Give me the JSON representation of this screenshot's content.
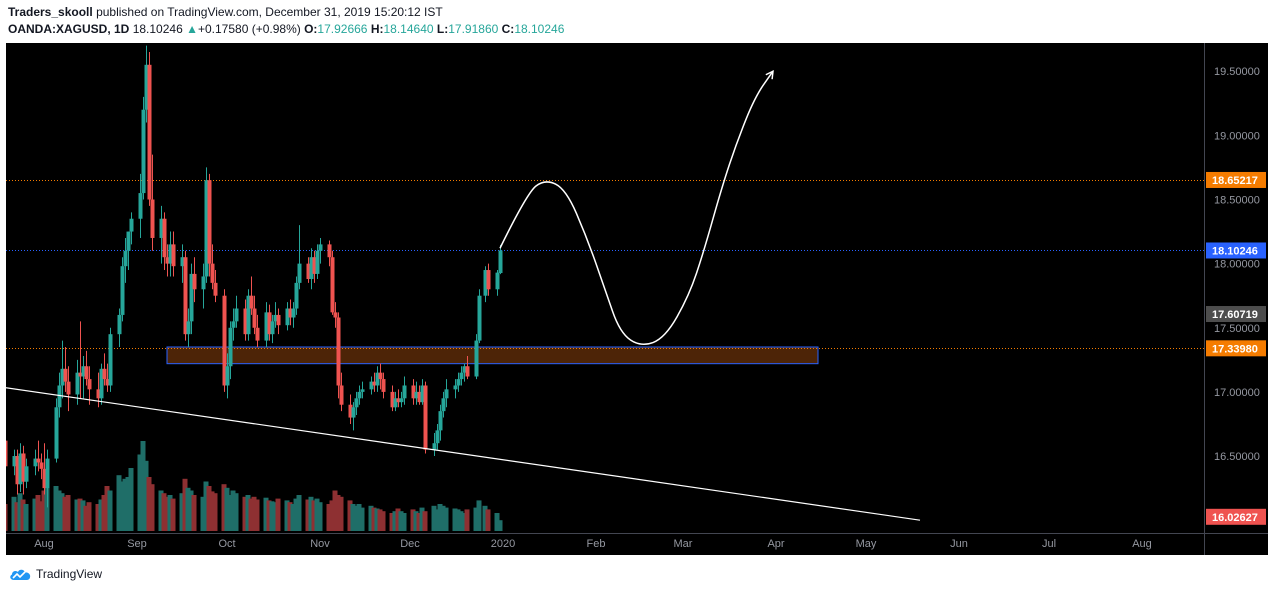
{
  "header": {
    "publisher": "Traders_skooll",
    "publish_text": "published on TradingView.com, December 31, 2019 15:20:12 IST",
    "symbol": "OANDA:XAGUSD, 1D",
    "last": "18.10246",
    "change_arrow": "▲",
    "change": "+0.17580 (+0.98%)",
    "o_label": "O:",
    "o_value": "17.92666",
    "h_label": "H:",
    "h_value": "18.14640",
    "l_label": "L:",
    "l_value": "17.91860",
    "c_label": "C:",
    "c_value": "18.10246"
  },
  "footer": {
    "brand": "TradingView",
    "icon": "tradingview-cloud-icon"
  },
  "colors": {
    "background": "#000000",
    "up": "#26a69a",
    "down": "#ef5350",
    "vol_up": "#1f6e68",
    "vol_down": "#8e3032",
    "orange_line": "#f57c00",
    "blue_line": "#2962ff",
    "zone_fill": "#5a2a08",
    "zone_border": "#2962ff",
    "axis_text": "#9598a1"
  },
  "chart_data": {
    "type": "candlestick",
    "symbol": "OANDA:XAGUSD",
    "interval": "1D",
    "x_ticks": [
      "Aug",
      "Sep",
      "Oct",
      "Nov",
      "Dec",
      "2020",
      "Feb",
      "Mar",
      "Apr",
      "May",
      "Jun",
      "Jul",
      "Aug"
    ],
    "y_ticks": [
      "19.50000",
      "19.00000",
      "18.50000",
      "18.00000",
      "17.50000",
      "17.00000",
      "16.50000"
    ],
    "ylim": [
      15.9,
      19.72
    ],
    "price_labels": [
      {
        "value": "18.65217",
        "color": "#f57c00"
      },
      {
        "value": "18.10246",
        "color": "#2962ff"
      },
      {
        "value": "17.60719",
        "color": "#4d4d4d"
      },
      {
        "value": "17.33980",
        "color": "#f57c00"
      },
      {
        "value": "16.02627",
        "color": "#ef5350"
      }
    ],
    "horizontal_lines": [
      {
        "value": 18.65217,
        "color": "#f57c00",
        "style": "dotted"
      },
      {
        "value": 18.10246,
        "color": "#2962ff",
        "style": "dotted"
      },
      {
        "value": 17.3398,
        "color": "#f57c00",
        "style": "dotted"
      }
    ],
    "zone": {
      "from": "2019-09-11",
      "to": "2020-04-15",
      "low": 17.22,
      "high": 17.35
    },
    "trendline": {
      "from": [
        "2019-07-17",
        17.04
      ],
      "to": [
        "2020-05-19",
        16.0
      ]
    },
    "projection_path": [
      [
        "2019-12-31",
        18.12
      ],
      [
        "2020-01-09",
        18.55
      ],
      [
        "2020-01-15",
        18.66
      ],
      [
        "2020-01-22",
        18.58
      ],
      [
        "2020-01-29",
        18.2
      ],
      [
        "2020-02-04",
        17.8
      ],
      [
        "2020-02-09",
        17.46
      ],
      [
        "2020-02-16",
        17.35
      ],
      [
        "2020-02-24",
        17.42
      ],
      [
        "2020-03-03",
        17.75
      ],
      [
        "2020-03-08",
        18.1
      ],
      [
        "2020-03-14",
        18.6
      ],
      [
        "2020-03-19",
        18.95
      ],
      [
        "2020-03-25",
        19.3
      ],
      [
        "2020-03-31",
        19.5
      ]
    ],
    "candles": [
      [
        "2019-07-18",
        16.55,
        16.72,
        16.45,
        16.62
      ],
      [
        "2019-07-19",
        16.62,
        16.75,
        16.4,
        16.42
      ],
      [
        "2019-07-22",
        16.42,
        16.55,
        16.35,
        16.5
      ],
      [
        "2019-07-23",
        16.5,
        16.55,
        16.2,
        16.28
      ],
      [
        "2019-07-24",
        16.28,
        16.6,
        16.22,
        16.52
      ],
      [
        "2019-07-25",
        16.52,
        16.58,
        16.2,
        16.3
      ],
      [
        "2019-07-26",
        16.3,
        16.48,
        16.25,
        16.42
      ],
      [
        "2019-07-29",
        16.42,
        16.55,
        16.35,
        16.48
      ],
      [
        "2019-07-30",
        16.48,
        16.62,
        16.38,
        16.45
      ],
      [
        "2019-07-31",
        16.45,
        16.52,
        16.32,
        16.4
      ],
      [
        "2019-08-01",
        16.4,
        16.6,
        16.2,
        16.25
      ],
      [
        "2019-08-02",
        16.25,
        16.55,
        16.1,
        16.48
      ],
      [
        "2019-08-05",
        16.48,
        16.95,
        16.45,
        16.88
      ],
      [
        "2019-08-06",
        16.88,
        17.15,
        16.8,
        17.05
      ],
      [
        "2019-08-07",
        17.05,
        17.4,
        16.95,
        17.18
      ],
      [
        "2019-08-08",
        17.18,
        17.35,
        17.0,
        17.08
      ],
      [
        "2019-08-09",
        17.08,
        17.2,
        16.85,
        16.98
      ],
      [
        "2019-08-12",
        16.98,
        17.25,
        16.9,
        17.15
      ],
      [
        "2019-08-13",
        17.15,
        17.55,
        16.95,
        17.12
      ],
      [
        "2019-08-14",
        17.12,
        17.28,
        16.95,
        17.2
      ],
      [
        "2019-08-15",
        17.2,
        17.32,
        17.05,
        17.1
      ],
      [
        "2019-08-16",
        17.1,
        17.2,
        16.9,
        17.02
      ],
      [
        "2019-08-19",
        17.02,
        17.15,
        16.88,
        16.95
      ],
      [
        "2019-08-20",
        16.95,
        17.22,
        16.9,
        17.18
      ],
      [
        "2019-08-21",
        17.18,
        17.3,
        17.05,
        17.1
      ],
      [
        "2019-08-22",
        17.1,
        17.22,
        17.0,
        17.05
      ],
      [
        "2019-08-23",
        17.05,
        17.5,
        17.0,
        17.45
      ],
      [
        "2019-08-26",
        17.45,
        17.65,
        17.35,
        17.6
      ],
      [
        "2019-08-27",
        17.6,
        18.05,
        17.55,
        17.98
      ],
      [
        "2019-08-28",
        17.98,
        18.2,
        17.85,
        18.1
      ],
      [
        "2019-08-29",
        18.1,
        18.25,
        17.95,
        18.25
      ],
      [
        "2019-08-30",
        18.25,
        18.4,
        18.15,
        18.35
      ],
      [
        "2019-09-02",
        18.35,
        18.7,
        18.2,
        18.55
      ],
      [
        "2019-09-03",
        18.55,
        19.3,
        18.5,
        19.2
      ],
      [
        "2019-09-04",
        19.2,
        19.7,
        19.1,
        19.55
      ],
      [
        "2019-09-05",
        19.55,
        19.65,
        18.45,
        18.5
      ],
      [
        "2019-09-06",
        18.5,
        18.85,
        18.1,
        18.2
      ],
      [
        "2019-09-09",
        18.2,
        18.45,
        18.0,
        18.35
      ],
      [
        "2019-09-10",
        18.35,
        18.4,
        17.95,
        18.05
      ],
      [
        "2019-09-11",
        18.05,
        18.15,
        17.9,
        18.0
      ],
      [
        "2019-09-12",
        18.0,
        18.25,
        17.9,
        18.15
      ],
      [
        "2019-09-13",
        18.15,
        18.25,
        17.9,
        17.98
      ],
      [
        "2019-09-16",
        17.98,
        18.15,
        17.85,
        18.05
      ],
      [
        "2019-09-17",
        18.05,
        18.1,
        17.4,
        17.45
      ],
      [
        "2019-09-18",
        17.45,
        17.65,
        17.35,
        17.55
      ],
      [
        "2019-09-19",
        17.55,
        18.0,
        17.45,
        17.92
      ],
      [
        "2019-09-20",
        17.92,
        18.05,
        17.7,
        17.8
      ],
      [
        "2019-09-23",
        17.8,
        18.0,
        17.65,
        17.9
      ],
      [
        "2019-09-24",
        17.9,
        18.75,
        17.85,
        18.65
      ],
      [
        "2019-09-25",
        18.65,
        18.7,
        17.9,
        18.0
      ],
      [
        "2019-09-26",
        18.0,
        18.15,
        17.8,
        17.85
      ],
      [
        "2019-09-27",
        17.85,
        17.95,
        17.7,
        17.75
      ],
      [
        "2019-09-30",
        17.75,
        17.8,
        17.0,
        17.05
      ],
      [
        "2019-10-01",
        17.05,
        17.3,
        16.95,
        17.2
      ],
      [
        "2019-10-02",
        17.2,
        17.55,
        17.1,
        17.5
      ],
      [
        "2019-10-03",
        17.5,
        17.65,
        17.4,
        17.55
      ],
      [
        "2019-10-04",
        17.55,
        17.75,
        17.5,
        17.65
      ],
      [
        "2019-10-07",
        17.65,
        17.72,
        17.4,
        17.45
      ],
      [
        "2019-10-08",
        17.45,
        17.8,
        17.4,
        17.75
      ],
      [
        "2019-10-09",
        17.75,
        17.9,
        17.6,
        17.65
      ],
      [
        "2019-10-10",
        17.65,
        17.75,
        17.45,
        17.5
      ],
      [
        "2019-10-11",
        17.5,
        17.6,
        17.35,
        17.4
      ],
      [
        "2019-10-14",
        17.4,
        17.7,
        17.35,
        17.62
      ],
      [
        "2019-10-15",
        17.62,
        17.68,
        17.4,
        17.45
      ],
      [
        "2019-10-16",
        17.45,
        17.6,
        17.38,
        17.55
      ],
      [
        "2019-10-17",
        17.55,
        17.7,
        17.5,
        17.6
      ],
      [
        "2019-10-18",
        17.6,
        17.65,
        17.45,
        17.52
      ],
      [
        "2019-10-21",
        17.52,
        17.7,
        17.48,
        17.65
      ],
      [
        "2019-10-22",
        17.65,
        17.72,
        17.52,
        17.58
      ],
      [
        "2019-10-23",
        17.58,
        17.7,
        17.5,
        17.65
      ],
      [
        "2019-10-24",
        17.65,
        17.9,
        17.6,
        17.85
      ],
      [
        "2019-10-25",
        17.85,
        18.3,
        17.8,
        18.0
      ],
      [
        "2019-10-28",
        18.0,
        18.05,
        17.85,
        17.88
      ],
      [
        "2019-10-29",
        17.88,
        18.12,
        17.8,
        18.05
      ],
      [
        "2019-10-30",
        18.05,
        18.1,
        17.85,
        17.92
      ],
      [
        "2019-10-31",
        17.92,
        18.15,
        17.88,
        18.1
      ],
      [
        "2019-11-01",
        18.1,
        18.2,
        18.0,
        18.15
      ],
      [
        "2019-11-04",
        18.15,
        18.18,
        17.98,
        18.05
      ],
      [
        "2019-11-05",
        18.05,
        18.1,
        17.6,
        17.62
      ],
      [
        "2019-11-06",
        17.62,
        17.7,
        17.5,
        17.58
      ],
      [
        "2019-11-07",
        17.58,
        17.62,
        16.95,
        17.05
      ],
      [
        "2019-11-08",
        17.05,
        17.15,
        16.85,
        16.9
      ],
      [
        "2019-11-11",
        16.9,
        16.98,
        16.75,
        16.8
      ],
      [
        "2019-11-12",
        16.8,
        16.92,
        16.7,
        16.88
      ],
      [
        "2019-11-13",
        16.88,
        17.0,
        16.82,
        16.95
      ],
      [
        "2019-11-14",
        16.95,
        17.05,
        16.9,
        17.0
      ],
      [
        "2019-11-15",
        17.0,
        17.08,
        16.95,
        17.02
      ],
      [
        "2019-11-18",
        17.02,
        17.12,
        16.98,
        17.08
      ],
      [
        "2019-11-19",
        17.08,
        17.15,
        17.0,
        17.05
      ],
      [
        "2019-11-20",
        17.05,
        17.2,
        17.0,
        17.15
      ],
      [
        "2019-11-21",
        17.15,
        17.22,
        17.02,
        17.1
      ],
      [
        "2019-11-22",
        17.1,
        17.15,
        16.95,
        17.0
      ],
      [
        "2019-11-25",
        17.0,
        17.05,
        16.85,
        16.88
      ],
      [
        "2019-11-26",
        16.88,
        17.0,
        16.85,
        16.95
      ],
      [
        "2019-11-27",
        16.95,
        17.02,
        16.88,
        16.92
      ],
      [
        "2019-11-28",
        16.92,
        17.0,
        16.88,
        16.95
      ],
      [
        "2019-11-29",
        16.95,
        17.12,
        16.9,
        17.05
      ],
      [
        "2019-12-02",
        17.05,
        17.1,
        16.9,
        16.95
      ],
      [
        "2019-12-03",
        16.95,
        17.08,
        16.9,
        17.0
      ],
      [
        "2019-12-04",
        17.0,
        17.05,
        16.9,
        16.92
      ],
      [
        "2019-12-05",
        16.92,
        17.1,
        16.9,
        17.05
      ],
      [
        "2019-12-06",
        17.05,
        17.08,
        16.52,
        16.55
      ],
      [
        "2019-12-09",
        16.55,
        16.68,
        16.5,
        16.6
      ],
      [
        "2019-12-10",
        16.6,
        16.75,
        16.55,
        16.7
      ],
      [
        "2019-12-11",
        16.7,
        16.9,
        16.62,
        16.85
      ],
      [
        "2019-12-12",
        16.85,
        17.0,
        16.8,
        16.95
      ],
      [
        "2019-12-13",
        16.95,
        17.1,
        16.88,
        17.02
      ],
      [
        "2019-12-16",
        17.02,
        17.1,
        16.95,
        17.05
      ],
      [
        "2019-12-17",
        17.05,
        17.15,
        17.0,
        17.1
      ],
      [
        "2019-12-18",
        17.1,
        17.2,
        17.05,
        17.15
      ],
      [
        "2019-12-19",
        17.15,
        17.22,
        17.08,
        17.2
      ],
      [
        "2019-12-20",
        17.2,
        17.28,
        17.1,
        17.12
      ],
      [
        "2019-12-23",
        17.12,
        17.45,
        17.1,
        17.4
      ],
      [
        "2019-12-24",
        17.4,
        17.8,
        17.38,
        17.75
      ],
      [
        "2019-12-26",
        17.75,
        17.98,
        17.7,
        17.95
      ],
      [
        "2019-12-27",
        17.95,
        18.0,
        17.75,
        17.8
      ],
      [
        "2019-12-30",
        17.8,
        17.95,
        17.75,
        17.93
      ],
      [
        "2019-12-31",
        17.92666,
        18.1464,
        17.9186,
        18.10246
      ]
    ],
    "volume_max": 100,
    "volumes": [
      48,
      30,
      38,
      32,
      42,
      35,
      30,
      36,
      40,
      33,
      45,
      55,
      50,
      45,
      42,
      38,
      40,
      35,
      36,
      34,
      28,
      32,
      30,
      35,
      40,
      50,
      45,
      62,
      55,
      58,
      60,
      70,
      85,
      100,
      78,
      60,
      52,
      45,
      42,
      38,
      40,
      36,
      42,
      58,
      48,
      45,
      40,
      38,
      55,
      50,
      44,
      42,
      52,
      48,
      40,
      45,
      42,
      38,
      40,
      36,
      38,
      35,
      37,
      34,
      33,
      32,
      36,
      34,
      32,
      30,
      36,
      40,
      35,
      38,
      34,
      36,
      32,
      30,
      34,
      45,
      40,
      38,
      34,
      30,
      28,
      30,
      26,
      28,
      26,
      25,
      24,
      22,
      20,
      22,
      25,
      22,
      20,
      24,
      22,
      20,
      26,
      22,
      28,
      24,
      30,
      28,
      26,
      25,
      24,
      22,
      20,
      24,
      26,
      34,
      28,
      24,
      20,
      12
    ]
  }
}
